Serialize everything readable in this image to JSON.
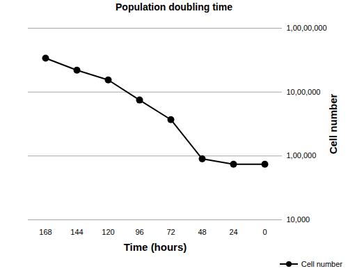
{
  "chart_data": {
    "type": "line",
    "title": "Population doubling time",
    "x_label": "Time (hours)",
    "y_label": "Cell number",
    "categories": [
      "168",
      "144",
      "120",
      "96",
      "72",
      "48",
      "24",
      "0"
    ],
    "series": [
      {
        "name": "Cell number",
        "color": "#000000",
        "marker": "circle",
        "values": [
          3400000,
          2200000,
          1550000,
          750000,
          370000,
          90000,
          74000,
          74000
        ]
      }
    ],
    "ylim": [
      10000,
      10000000
    ],
    "yticks": [
      {
        "value": 10000,
        "label": "10,000"
      },
      {
        "value": 100000,
        "label": "1,00,000"
      },
      {
        "value": 1000000,
        "label": "10,00,000"
      },
      {
        "value": 10000000,
        "label": "1,00,00,000"
      }
    ],
    "log": "y",
    "grid": true,
    "legend": "bottom-right"
  }
}
